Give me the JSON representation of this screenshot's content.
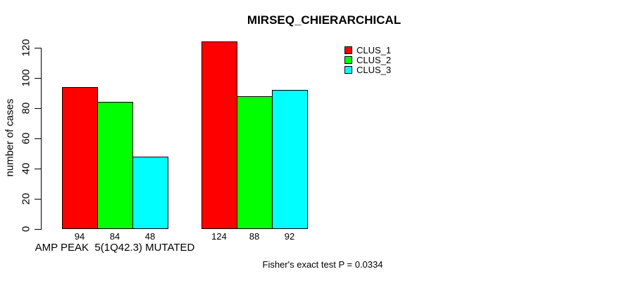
{
  "background": "#ffffff",
  "axis_color": "#000000",
  "text_color": "#000000",
  "chart_data": {
    "type": "bar",
    "title": "MIRSEQ_CHIERARCHICAL",
    "ylabel": "number of cases",
    "xlabel": "",
    "ylim": [
      0,
      120
    ],
    "yticks": [
      0,
      20,
      40,
      60,
      80,
      100,
      120
    ],
    "grid": false,
    "bar_value_labels": true,
    "legend_position": "top-right-inside",
    "groups": [
      {
        "label": "AMP PEAK  5(1Q42.3) MUTATED",
        "values": [
          94,
          84,
          48
        ]
      },
      {
        "label": "",
        "values": [
          124,
          88,
          92
        ]
      }
    ],
    "series": [
      {
        "name": "CLUS_1",
        "color": "#ff0000",
        "values": [
          94,
          124
        ]
      },
      {
        "name": "CLUS_2",
        "color": "#00ff00",
        "values": [
          84,
          88
        ]
      },
      {
        "name": "CLUS_3",
        "color": "#00ffff",
        "values": [
          48,
          92
        ]
      }
    ],
    "footnote": "Fisher's exact test P = 0.0334"
  }
}
